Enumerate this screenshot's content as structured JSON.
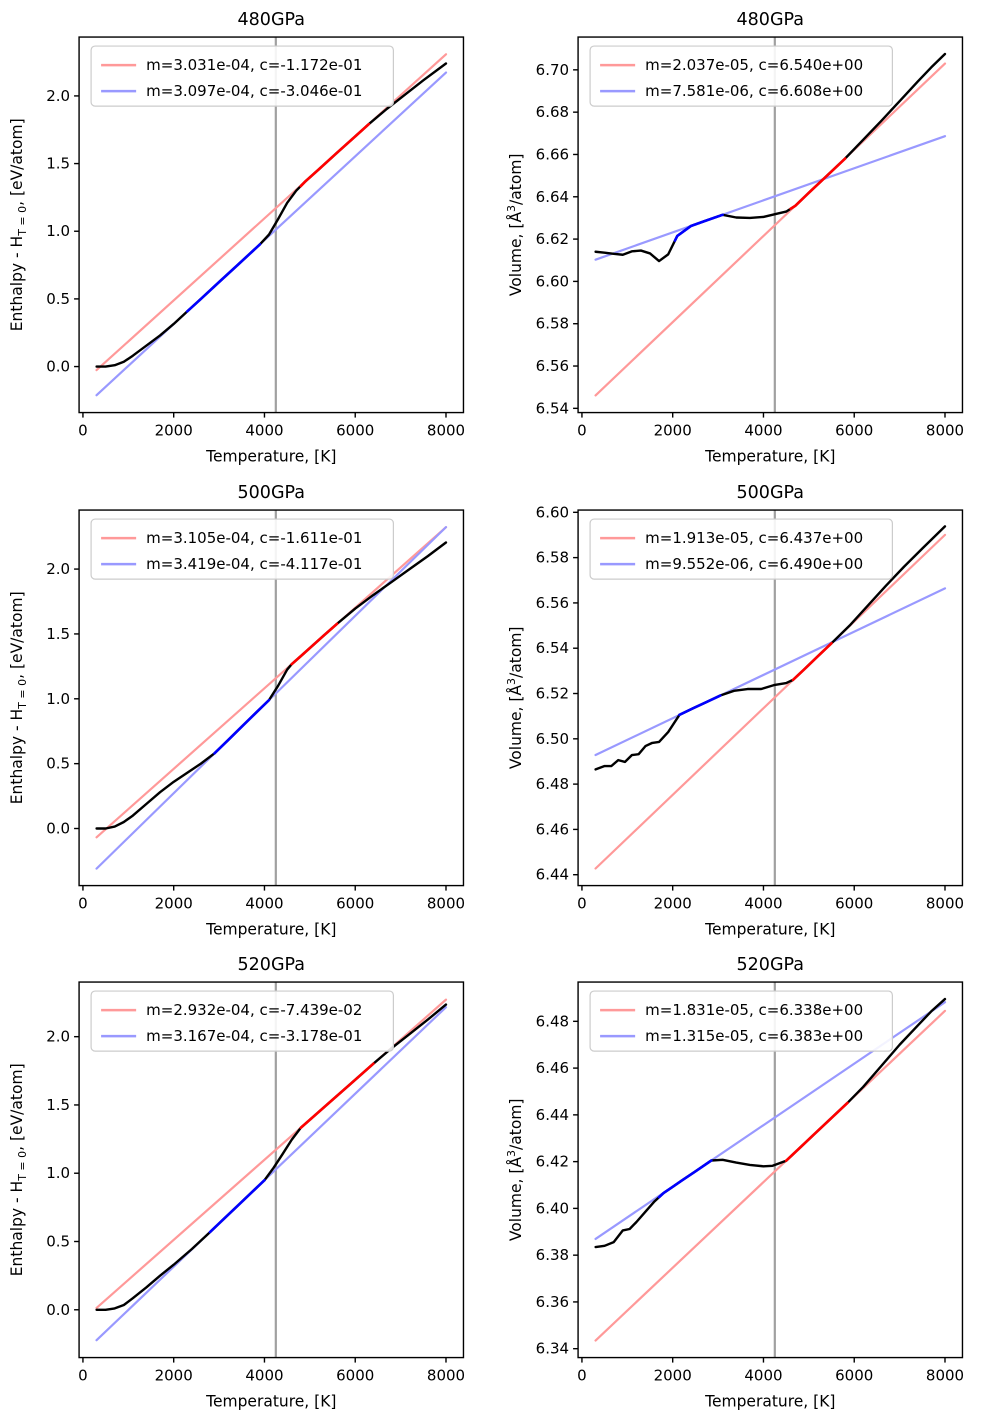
{
  "figure": {
    "background": "#ffffff"
  },
  "colors": {
    "fit_red": "#ff9999",
    "fit_blue": "#9999ff",
    "seg_red": "#ff0000",
    "seg_blue": "#0000ff",
    "curve": "#000000",
    "vline": "#a0a0a0",
    "axis": "#000000",
    "legend_border": "#cccccc",
    "legend_bg": "#ffffff"
  },
  "x_axis": {
    "label": "Temperature, [K]",
    "ticks": [
      0,
      2000,
      4000,
      6000,
      8000
    ],
    "lim": [
      -85,
      8385
    ]
  },
  "vline_x": 4250,
  "chart_data": [
    {
      "id": "enthalpy-480",
      "type": "line",
      "title": "480GPa",
      "xlabel": "Temperature, [K]",
      "ylabel": "Enthalpy - H_{T = 0}, [eV/atom]",
      "ylabel_parts": [
        {
          "t": "Enthalpy - H"
        },
        {
          "t": "T = 0",
          "script": "sub"
        },
        {
          "t": ", [eV/atom]"
        }
      ],
      "yticks": [
        0.0,
        0.5,
        1.0,
        1.5,
        2.0
      ],
      "ytick_decimals": 1,
      "ylim": [
        -0.34,
        2.435
      ],
      "legend": [
        {
          "color": "fit_red",
          "label": "m=3.031e-04, c=-1.172e-01"
        },
        {
          "color": "fit_blue",
          "label": "m=3.097e-04, c=-3.046e-01"
        }
      ],
      "fits": [
        {
          "m": 0.0003031,
          "c": -0.1172,
          "color": "fit_red"
        },
        {
          "m": 0.0003097,
          "c": -0.3046,
          "color": "fit_blue"
        }
      ],
      "fit_range": [
        300,
        8000
      ],
      "curve": [
        [
          300,
          0.0
        ],
        [
          500,
          0.0
        ],
        [
          700,
          0.01
        ],
        [
          900,
          0.035
        ],
        [
          1100,
          0.08
        ],
        [
          1400,
          0.155
        ],
        [
          1700,
          0.23
        ],
        [
          2000,
          0.315
        ],
        [
          2300,
          0.408
        ],
        [
          2600,
          0.5
        ],
        [
          3000,
          0.625
        ],
        [
          3400,
          0.748
        ],
        [
          3900,
          0.903
        ],
        [
          4100,
          0.975
        ],
        [
          4300,
          1.09
        ],
        [
          4500,
          1.21
        ],
        [
          4700,
          1.3
        ],
        [
          4900,
          1.368
        ],
        [
          5200,
          1.458
        ],
        [
          5600,
          1.58
        ],
        [
          6000,
          1.701
        ],
        [
          6300,
          1.792
        ],
        [
          6700,
          1.905
        ],
        [
          7100,
          2.01
        ],
        [
          7500,
          2.115
        ],
        [
          8000,
          2.24
        ]
      ],
      "blue_seg": [
        2300,
        3900
      ],
      "red_seg": [
        4800,
        6300
      ]
    },
    {
      "id": "volume-480",
      "type": "line",
      "title": "480GPa",
      "xlabel": "Temperature, [K]",
      "ylabel": "Volume, [Å^3/atom]",
      "ylabel_parts": [
        {
          "t": "Volume, [Å"
        },
        {
          "t": "3",
          "script": "sup"
        },
        {
          "t": "/atom]"
        }
      ],
      "yticks": [
        6.54,
        6.56,
        6.58,
        6.6,
        6.62,
        6.64,
        6.66,
        6.68,
        6.7
      ],
      "ytick_decimals": 2,
      "ylim": [
        6.538,
        6.7155
      ],
      "legend": [
        {
          "color": "fit_red",
          "label": "m=2.037e-05, c=6.540e+00"
        },
        {
          "color": "fit_blue",
          "label": "m=7.581e-06, c=6.608e+00"
        }
      ],
      "fits": [
        {
          "m": 2.037e-05,
          "c": 6.54,
          "color": "fit_red"
        },
        {
          "m": 7.581e-06,
          "c": 6.608,
          "color": "fit_blue"
        }
      ],
      "fit_range": [
        300,
        8000
      ],
      "curve": [
        [
          300,
          6.614
        ],
        [
          500,
          6.6136
        ],
        [
          700,
          6.613
        ],
        [
          900,
          6.6126
        ],
        [
          1100,
          6.6142
        ],
        [
          1300,
          6.6146
        ],
        [
          1500,
          6.6132
        ],
        [
          1700,
          6.6096
        ],
        [
          1900,
          6.6128
        ],
        [
          2100,
          6.6215
        ],
        [
          2400,
          6.6262
        ],
        [
          2700,
          6.6285
        ],
        [
          3100,
          6.6315
        ],
        [
          3400,
          6.6302
        ],
        [
          3700,
          6.63
        ],
        [
          4000,
          6.6305
        ],
        [
          4300,
          6.632
        ],
        [
          4500,
          6.633
        ],
        [
          4700,
          6.6357
        ],
        [
          5000,
          6.6419
        ],
        [
          5400,
          6.65
        ],
        [
          5800,
          6.6581
        ],
        [
          6200,
          6.667
        ],
        [
          6600,
          6.676
        ],
        [
          7000,
          6.6852
        ],
        [
          7400,
          6.6945
        ],
        [
          7700,
          6.7012
        ],
        [
          8000,
          6.7075
        ]
      ],
      "blue_seg": [
        2050,
        3100
      ],
      "red_seg": [
        4600,
        5800
      ]
    },
    {
      "id": "enthalpy-500",
      "type": "line",
      "title": "500GPa",
      "xlabel": "Temperature, [K]",
      "ylabel": "Enthalpy - H_{T = 0}, [eV/atom]",
      "ylabel_parts": [
        {
          "t": "Enthalpy - H"
        },
        {
          "t": "T = 0",
          "script": "sub"
        },
        {
          "t": ", [eV/atom]"
        }
      ],
      "yticks": [
        0.0,
        0.5,
        1.0,
        1.5,
        2.0
      ],
      "ytick_decimals": 1,
      "ylim": [
        -0.44,
        2.455
      ],
      "legend": [
        {
          "color": "fit_red",
          "label": "m=3.105e-04, c=-1.611e-01"
        },
        {
          "color": "fit_blue",
          "label": "m=3.419e-04, c=-4.117e-01"
        }
      ],
      "fits": [
        {
          "m": 0.0003105,
          "c": -0.1611,
          "color": "fit_red"
        },
        {
          "m": 0.0003419,
          "c": -0.4117,
          "color": "fit_blue"
        }
      ],
      "fit_range": [
        300,
        8000
      ],
      "curve": [
        [
          300,
          0.0
        ],
        [
          500,
          0.0
        ],
        [
          700,
          0.015
        ],
        [
          900,
          0.05
        ],
        [
          1100,
          0.1
        ],
        [
          1400,
          0.19
        ],
        [
          1700,
          0.28
        ],
        [
          2000,
          0.36
        ],
        [
          2300,
          0.43
        ],
        [
          2600,
          0.5
        ],
        [
          2900,
          0.58
        ],
        [
          3200,
          0.682
        ],
        [
          3500,
          0.785
        ],
        [
          3800,
          0.888
        ],
        [
          4100,
          0.99
        ],
        [
          4300,
          1.1
        ],
        [
          4500,
          1.225
        ],
        [
          4600,
          1.267
        ],
        [
          4800,
          1.329
        ],
        [
          5000,
          1.391
        ],
        [
          5300,
          1.485
        ],
        [
          5600,
          1.578
        ],
        [
          6000,
          1.695
        ],
        [
          6400,
          1.8
        ],
        [
          6800,
          1.9
        ],
        [
          7200,
          2.0
        ],
        [
          7600,
          2.1
        ],
        [
          8000,
          2.205
        ]
      ],
      "blue_seg": [
        2900,
        4100
      ],
      "red_seg": [
        4600,
        5600
      ]
    },
    {
      "id": "volume-500",
      "type": "line",
      "title": "500GPa",
      "xlabel": "Temperature, [K]",
      "ylabel": "Volume, [Å^3/atom]",
      "ylabel_parts": [
        {
          "t": "Volume, [Å"
        },
        {
          "t": "3",
          "script": "sup"
        },
        {
          "t": "/atom]"
        }
      ],
      "yticks": [
        6.44,
        6.46,
        6.48,
        6.5,
        6.52,
        6.54,
        6.56,
        6.58,
        6.6
      ],
      "ytick_decimals": 2,
      "ylim": [
        6.4352,
        6.601
      ],
      "legend": [
        {
          "color": "fit_red",
          "label": "m=1.913e-05, c=6.437e+00"
        },
        {
          "color": "fit_blue",
          "label": "m=9.552e-06, c=6.490e+00"
        }
      ],
      "fits": [
        {
          "m": 1.913e-05,
          "c": 6.437,
          "color": "fit_red"
        },
        {
          "m": 9.552e-06,
          "c": 6.49,
          "color": "fit_blue"
        }
      ],
      "fit_range": [
        300,
        8000
      ],
      "curve": [
        [
          300,
          6.4865
        ],
        [
          500,
          6.488
        ],
        [
          650,
          6.488
        ],
        [
          800,
          6.4906
        ],
        [
          950,
          6.4898
        ],
        [
          1100,
          6.4928
        ],
        [
          1250,
          6.4932
        ],
        [
          1400,
          6.4968
        ],
        [
          1550,
          6.4982
        ],
        [
          1700,
          6.4986
        ],
        [
          1900,
          6.503
        ],
        [
          2150,
          6.5106
        ],
        [
          2450,
          6.5135
        ],
        [
          2750,
          6.5163
        ],
        [
          3050,
          6.5191
        ],
        [
          3350,
          6.5212
        ],
        [
          3650,
          6.522
        ],
        [
          3950,
          6.522
        ],
        [
          4250,
          6.5238
        ],
        [
          4500,
          6.5246
        ],
        [
          4650,
          6.526
        ],
        [
          4900,
          6.5307
        ],
        [
          5200,
          6.5365
        ],
        [
          5500,
          6.5422
        ],
        [
          5900,
          6.55
        ],
        [
          6300,
          6.5588
        ],
        [
          6700,
          6.5676
        ],
        [
          7100,
          6.576
        ],
        [
          7500,
          6.584
        ],
        [
          8000,
          6.5938
        ]
      ],
      "blue_seg": [
        2150,
        3050
      ],
      "red_seg": [
        4650,
        5500
      ]
    },
    {
      "id": "enthalpy-520",
      "type": "line",
      "title": "520GPa",
      "xlabel": "Temperature, [K]",
      "ylabel": "Enthalpy - H_{T = 0}, [eV/atom]",
      "ylabel_parts": [
        {
          "t": "Enthalpy - H"
        },
        {
          "t": "T = 0",
          "script": "sub"
        },
        {
          "t": ", [eV/atom]"
        }
      ],
      "yticks": [
        0.0,
        0.5,
        1.0,
        1.5,
        2.0
      ],
      "ytick_decimals": 1,
      "ylim": [
        -0.35,
        2.4
      ],
      "legend": [
        {
          "color": "fit_red",
          "label": "m=2.932e-04, c=-7.439e-02"
        },
        {
          "color": "fit_blue",
          "label": "m=3.167e-04, c=-3.178e-01"
        }
      ],
      "fits": [
        {
          "m": 0.0002932,
          "c": -0.07439,
          "color": "fit_red"
        },
        {
          "m": 0.0003167,
          "c": -0.3178,
          "color": "fit_blue"
        }
      ],
      "fit_range": [
        300,
        8000
      ],
      "curve": [
        [
          300,
          0.0
        ],
        [
          500,
          0.0
        ],
        [
          700,
          0.01
        ],
        [
          900,
          0.035
        ],
        [
          1100,
          0.085
        ],
        [
          1400,
          0.165
        ],
        [
          1700,
          0.25
        ],
        [
          2000,
          0.33
        ],
        [
          2400,
          0.445
        ],
        [
          2800,
          0.569
        ],
        [
          3100,
          0.664
        ],
        [
          3400,
          0.759
        ],
        [
          3700,
          0.854
        ],
        [
          4000,
          0.949
        ],
        [
          4200,
          1.04
        ],
        [
          4400,
          1.14
        ],
        [
          4600,
          1.245
        ],
        [
          4800,
          1.333
        ],
        [
          5100,
          1.421
        ],
        [
          5500,
          1.538
        ],
        [
          5900,
          1.655
        ],
        [
          6400,
          1.802
        ],
        [
          6800,
          1.915
        ],
        [
          7200,
          2.02
        ],
        [
          7600,
          2.125
        ],
        [
          8000,
          2.235
        ]
      ],
      "blue_seg": [
        2800,
        4000
      ],
      "red_seg": [
        4800,
        6400
      ]
    },
    {
      "id": "volume-520",
      "type": "line",
      "title": "520GPa",
      "xlabel": "Temperature, [K]",
      "ylabel": "Volume, [Å^3/atom]",
      "ylabel_parts": [
        {
          "t": "Volume, [Å"
        },
        {
          "t": "3",
          "script": "sup"
        },
        {
          "t": "/atom]"
        }
      ],
      "yticks": [
        6.34,
        6.36,
        6.38,
        6.4,
        6.42,
        6.44,
        6.46,
        6.48
      ],
      "ytick_decimals": 2,
      "ylim": [
        6.3362,
        6.4968
      ],
      "legend": [
        {
          "color": "fit_red",
          "label": "m=1.831e-05, c=6.338e+00"
        },
        {
          "color": "fit_blue",
          "label": "m=1.315e-05, c=6.383e+00"
        }
      ],
      "fits": [
        {
          "m": 1.831e-05,
          "c": 6.338,
          "color": "fit_red"
        },
        {
          "m": 1.315e-05,
          "c": 6.383,
          "color": "fit_blue"
        }
      ],
      "fit_range": [
        300,
        8000
      ],
      "curve": [
        [
          300,
          6.3835
        ],
        [
          500,
          6.384
        ],
        [
          700,
          6.3856
        ],
        [
          900,
          6.3906
        ],
        [
          1050,
          6.3912
        ],
        [
          1200,
          6.3942
        ],
        [
          1400,
          6.3986
        ],
        [
          1600,
          6.403
        ],
        [
          1800,
          6.4066
        ],
        [
          2000,
          6.4092
        ],
        [
          2200,
          6.4119
        ],
        [
          2500,
          6.4158
        ],
        [
          2850,
          6.4205
        ],
        [
          3100,
          6.4208
        ],
        [
          3400,
          6.4196
        ],
        [
          3700,
          6.4186
        ],
        [
          4000,
          6.418
        ],
        [
          4200,
          6.4182
        ],
        [
          4500,
          6.4204
        ],
        [
          4800,
          6.4259
        ],
        [
          5100,
          6.4314
        ],
        [
          5400,
          6.4369
        ],
        [
          5850,
          6.4451
        ],
        [
          6200,
          6.452
        ],
        [
          6600,
          6.461
        ],
        [
          7000,
          6.47
        ],
        [
          7400,
          6.4782
        ],
        [
          7700,
          6.4843
        ],
        [
          8000,
          6.4895
        ]
      ],
      "blue_seg": [
        1700,
        2850
      ],
      "red_seg": [
        4500,
        5850
      ]
    }
  ]
}
